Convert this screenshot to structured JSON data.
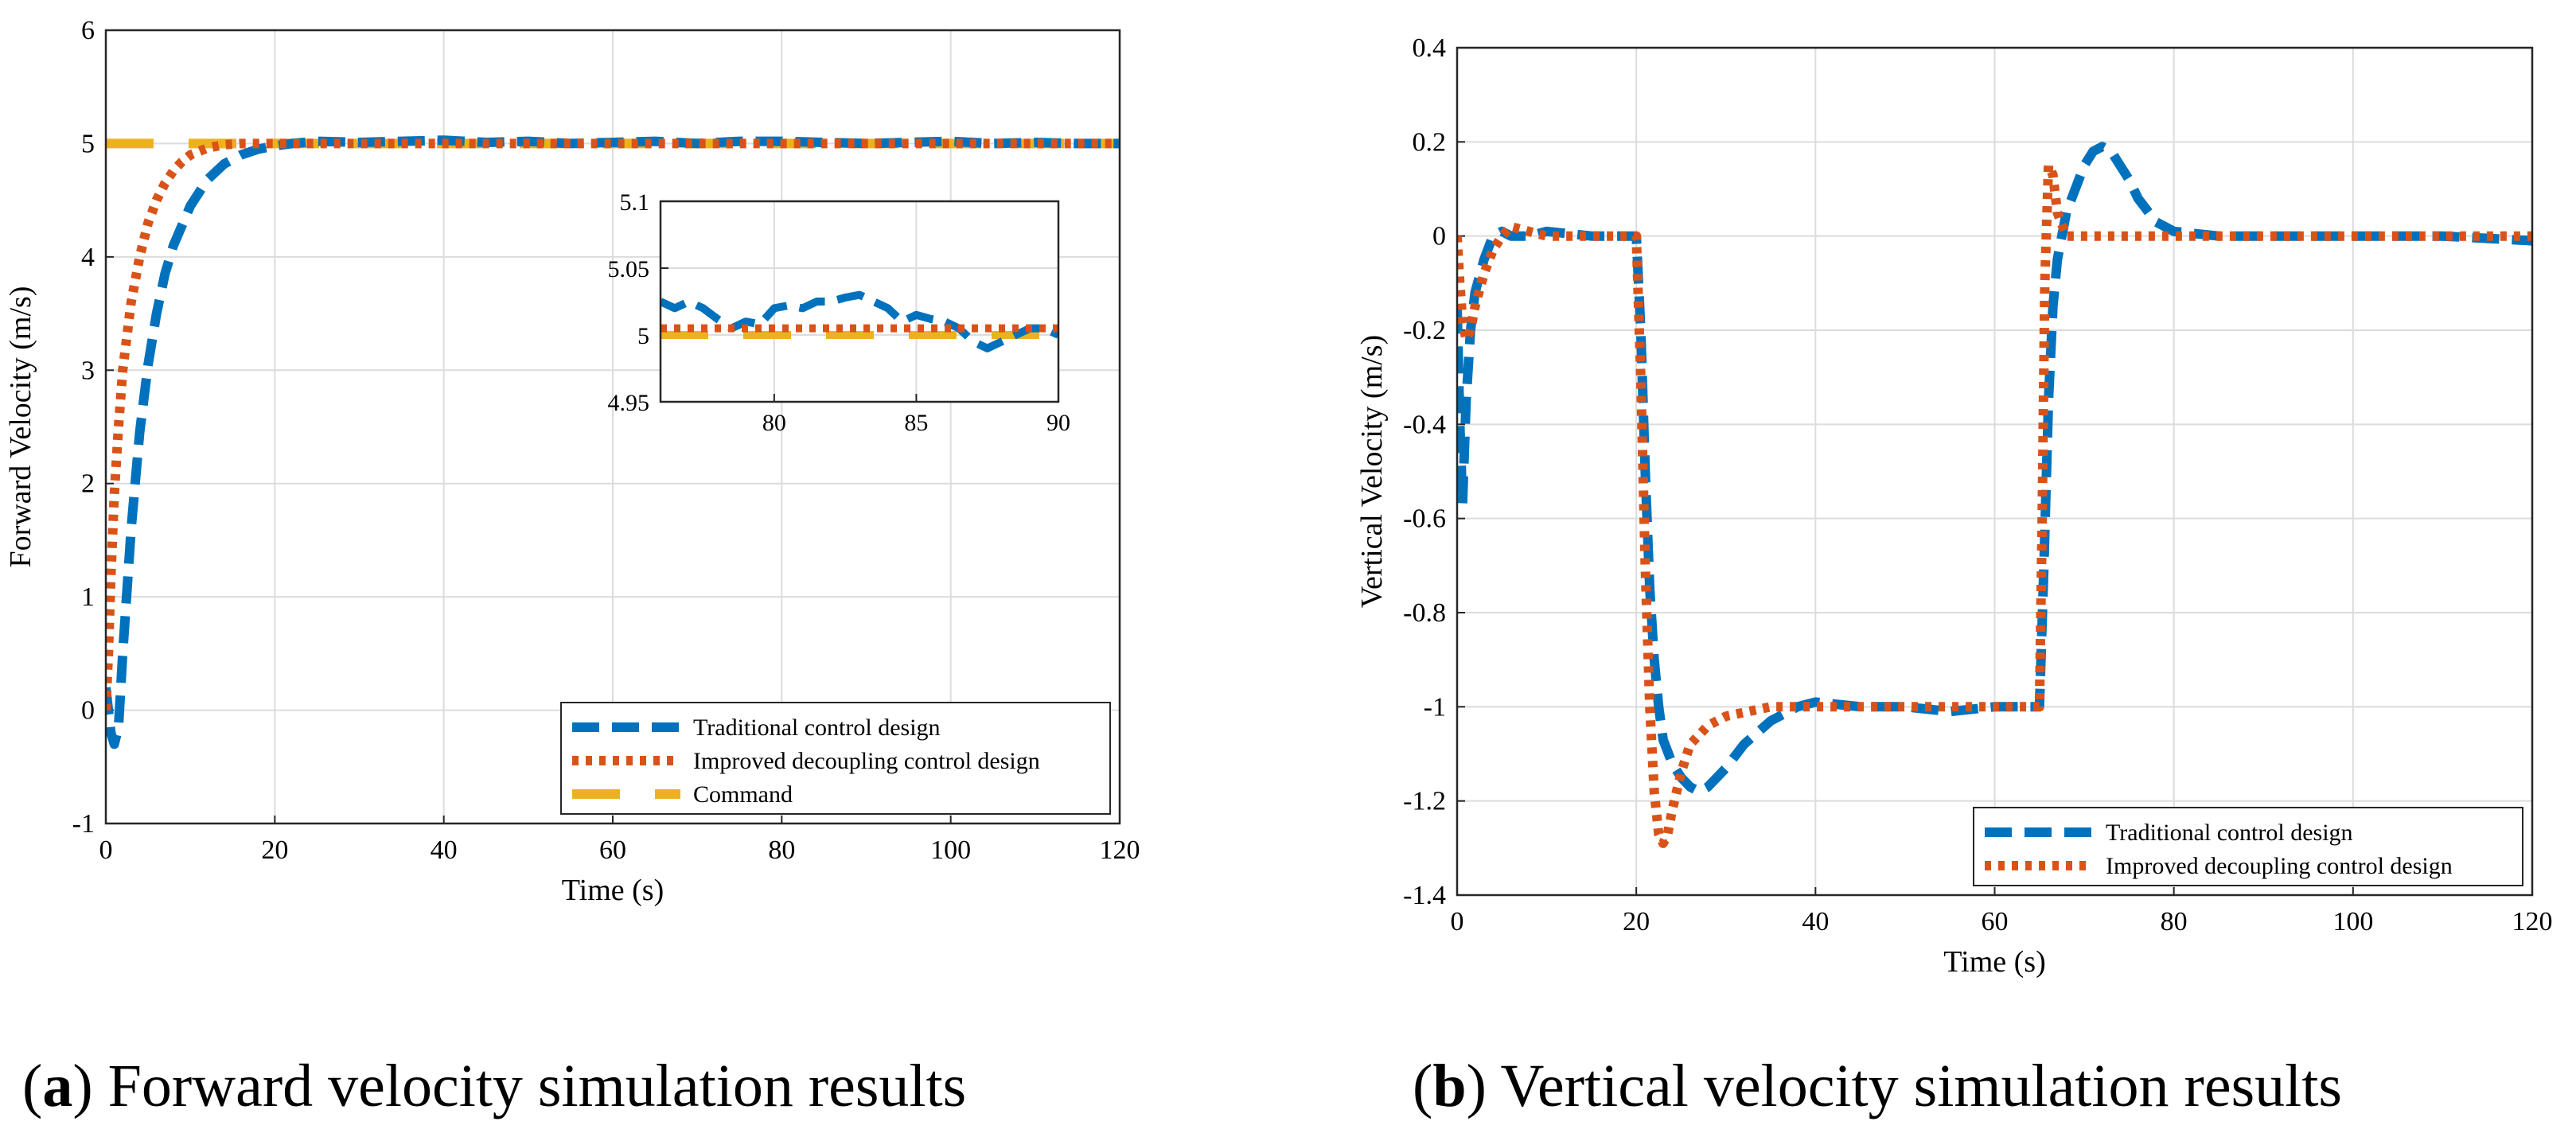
{
  "colors": {
    "traditional": "#0072BD",
    "improved": "#D95319",
    "command": "#EDB120"
  },
  "chart_data": [
    {
      "type": "line",
      "caption_letter": "a",
      "caption_text": ") Forward velocity simulation results",
      "xlabel": "Time (s)",
      "ylabel": "Forward Velocity (m/s)",
      "xlim": [
        0,
        120
      ],
      "ylim": [
        -1,
        6
      ],
      "xticks": [
        "0",
        "20",
        "40",
        "60",
        "80",
        "100",
        "120"
      ],
      "yticks": [
        "-1",
        "0",
        "1",
        "2",
        "3",
        "4",
        "5",
        "6"
      ],
      "grid": true,
      "legend_position": "bottom-right",
      "series": [
        {
          "name": "Traditional control design",
          "style": "dashed",
          "color": "traditional",
          "x": [
            0,
            0.3,
            0.6,
            1,
            1.5,
            2,
            3,
            4,
            5,
            6,
            7,
            8,
            10,
            12,
            14,
            16,
            18,
            20,
            22,
            25,
            30,
            35,
            40,
            45,
            50,
            55,
            60,
            65,
            70,
            75,
            80,
            85,
            90,
            95,
            100,
            105,
            110,
            115,
            120
          ],
          "y": [
            0.2,
            0.0,
            -0.2,
            -0.3,
            -0.15,
            0.5,
            1.6,
            2.45,
            3.05,
            3.5,
            3.85,
            4.1,
            4.45,
            4.68,
            4.82,
            4.9,
            4.95,
            4.98,
            5.0,
            5.02,
            5.01,
            5.02,
            5.03,
            5.01,
            5.02,
            5.0,
            5.01,
            5.02,
            5.0,
            5.02,
            5.02,
            5.01,
            5.0,
            5.01,
            5.02,
            5.0,
            5.01,
            5.0,
            5.0
          ]
        },
        {
          "name": "Improved decoupling control design",
          "style": "dotted",
          "color": "improved",
          "x": [
            0,
            0.3,
            0.6,
            1,
            1.5,
            2,
            3,
            4,
            5,
            6,
            7,
            8,
            9,
            10,
            12,
            14,
            16,
            20,
            30,
            40,
            60,
            80,
            100,
            120
          ],
          "y": [
            0.0,
            0.5,
            1.2,
            1.9,
            2.5,
            3.0,
            3.6,
            4.0,
            4.3,
            4.5,
            4.65,
            4.76,
            4.84,
            4.9,
            4.96,
            4.99,
            5.0,
            5.0,
            5.0,
            5.0,
            5.0,
            5.0,
            5.0,
            5.0
          ]
        },
        {
          "name": "Command",
          "style": "longdash",
          "color": "command",
          "x": [
            0,
            120
          ],
          "y": [
            5,
            5
          ]
        }
      ],
      "inset": {
        "xlim": [
          76,
          90
        ],
        "ylim": [
          4.95,
          5.1
        ],
        "xticks": [
          "80",
          "85",
          "90"
        ],
        "yticks": [
          "4.95",
          "5",
          "5.05",
          "5.1"
        ],
        "series": [
          {
            "color": "traditional",
            "style": "dashed",
            "x": [
              76,
              76.5,
              77,
              77.5,
              78,
              78.5,
              79,
              79.5,
              80,
              80.5,
              81,
              81.5,
              82,
              82.5,
              83,
              83.5,
              84,
              84.5,
              85,
              85.5,
              86,
              86.5,
              87,
              87.5,
              88,
              88.5,
              89,
              89.5,
              90
            ],
            "y": [
              5.025,
              5.02,
              5.025,
              5.02,
              5.012,
              5.005,
              5.01,
              5.008,
              5.02,
              5.022,
              5.02,
              5.025,
              5.025,
              5.028,
              5.03,
              5.025,
              5.02,
              5.01,
              5.015,
              5.012,
              5.01,
              5.005,
              4.995,
              4.99,
              4.995,
              5.0,
              5.005,
              5.005,
              5.0
            ]
          },
          {
            "color": "improved",
            "style": "dotted",
            "x": [
              76,
              90
            ],
            "y": [
              5.005,
              5.005
            ]
          },
          {
            "color": "command",
            "style": "longdash",
            "x": [
              76,
              90
            ],
            "y": [
              5.0,
              5.0
            ]
          }
        ]
      }
    },
    {
      "type": "line",
      "caption_letter": "b",
      "caption_text": ") Vertical velocity simulation results",
      "xlabel": "Time (s)",
      "ylabel": "Vertical Velocity (m/s)",
      "xlim": [
        0,
        120
      ],
      "ylim": [
        -1.4,
        0.4
      ],
      "xticks": [
        "0",
        "20",
        "40",
        "60",
        "80",
        "100",
        "120"
      ],
      "yticks": [
        "-1.4",
        "-1.2",
        "-1",
        "-0.8",
        "-0.6",
        "-0.4",
        "-0.2",
        "0",
        "0.2",
        "0.4"
      ],
      "grid": true,
      "legend_position": "bottom-right",
      "series": [
        {
          "name": "Traditional control design",
          "style": "dashed",
          "color": "traditional",
          "x": [
            0,
            0.3,
            0.6,
            1,
            1.5,
            2,
            3,
            4,
            5,
            6,
            8,
            10,
            15,
            19,
            20,
            20.5,
            21,
            21.5,
            22,
            22.5,
            23,
            24,
            25,
            26,
            27,
            28,
            30,
            32,
            35,
            38,
            40,
            45,
            50,
            55,
            60,
            64,
            65,
            65.5,
            66,
            66.5,
            67,
            67.5,
            68,
            69,
            70,
            71,
            72,
            73,
            74,
            75,
            76,
            78,
            80,
            85,
            90,
            100,
            110,
            120
          ],
          "y": [
            -0.15,
            -0.4,
            -0.57,
            -0.35,
            -0.2,
            -0.12,
            -0.05,
            0.0,
            0.01,
            0.0,
            0.0,
            0.01,
            0.0,
            0.0,
            0.0,
            -0.2,
            -0.5,
            -0.75,
            -0.9,
            -1.0,
            -1.07,
            -1.12,
            -1.15,
            -1.17,
            -1.18,
            -1.17,
            -1.13,
            -1.08,
            -1.03,
            -1.0,
            -0.99,
            -1.0,
            -1.0,
            -1.01,
            -1.0,
            -1.0,
            -1.0,
            -0.7,
            -0.35,
            -0.15,
            -0.05,
            0.0,
            0.05,
            0.1,
            0.15,
            0.18,
            0.19,
            0.18,
            0.15,
            0.12,
            0.08,
            0.03,
            0.01,
            0.0,
            0.0,
            0.0,
            0.0,
            -0.01
          ]
        },
        {
          "name": "Improved decoupling control design",
          "style": "dotted",
          "color": "improved",
          "x": [
            0,
            0.3,
            0.6,
            1,
            1.5,
            2,
            3,
            4,
            5,
            6,
            8,
            10,
            15,
            19,
            20,
            20.5,
            21,
            21.5,
            22,
            22.5,
            23,
            23.5,
            24,
            25,
            26,
            28,
            30,
            35,
            40,
            50,
            60,
            64,
            65,
            65.3,
            65.6,
            66,
            66.5,
            67,
            68,
            70,
            80,
            100,
            120
          ],
          "y": [
            0.0,
            -0.1,
            -0.18,
            -0.22,
            -0.2,
            -0.15,
            -0.08,
            -0.03,
            0.0,
            0.02,
            0.01,
            0.0,
            0.0,
            0.0,
            0.0,
            -0.3,
            -0.7,
            -1.0,
            -1.18,
            -1.27,
            -1.29,
            -1.27,
            -1.22,
            -1.14,
            -1.08,
            -1.04,
            -1.02,
            -1.0,
            -1.0,
            -1.0,
            -1.0,
            -1.0,
            -1.0,
            -0.6,
            -0.1,
            0.15,
            0.13,
            0.05,
            0.0,
            0.0,
            0.0,
            0.0,
            0.0
          ]
        }
      ]
    }
  ]
}
